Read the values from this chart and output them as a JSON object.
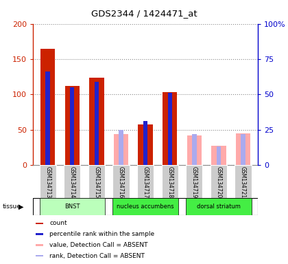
{
  "title": "GDS2344 / 1424471_at",
  "samples": [
    "GSM134713",
    "GSM134714",
    "GSM134715",
    "GSM134716",
    "GSM134717",
    "GSM134718",
    "GSM134719",
    "GSM134720",
    "GSM134721"
  ],
  "count_present": [
    165,
    112,
    124,
    null,
    57,
    103,
    null,
    null,
    null
  ],
  "count_absent": [
    null,
    null,
    null,
    44,
    null,
    null,
    42,
    27,
    45
  ],
  "rank_present": [
    66,
    55,
    59,
    null,
    31,
    51,
    null,
    null,
    null
  ],
  "rank_absent": [
    null,
    null,
    null,
    25,
    null,
    null,
    22,
    13,
    22
  ],
  "ylim_left": [
    0,
    200
  ],
  "ylim_right": [
    0,
    100
  ],
  "yticks_left": [
    0,
    50,
    100,
    150,
    200
  ],
  "yticks_right": [
    0,
    25,
    50,
    75,
    100
  ],
  "yticklabels_left": [
    "0",
    "50",
    "100",
    "150",
    "200"
  ],
  "yticklabels_right": [
    "0",
    "25",
    "50",
    "75",
    "100%"
  ],
  "color_count_present": "#cc2200",
  "color_rank_present": "#2222cc",
  "color_count_absent": "#ffaaaa",
  "color_rank_absent": "#aaaaee",
  "tissue_groups": [
    {
      "label": "BNST",
      "start": 0,
      "end": 2,
      "color": "#bbffbb"
    },
    {
      "label": "nucleus accumbens",
      "start": 3,
      "end": 5,
      "color": "#44ee44"
    },
    {
      "label": "dorsal striatum",
      "start": 6,
      "end": 8,
      "color": "#44ee44"
    }
  ],
  "legend_items": [
    {
      "color": "#cc2200",
      "label": "count"
    },
    {
      "color": "#2222cc",
      "label": "percentile rank within the sample"
    },
    {
      "color": "#ffaaaa",
      "label": "value, Detection Call = ABSENT"
    },
    {
      "color": "#aaaaee",
      "label": "rank, Detection Call = ABSENT"
    }
  ],
  "bar_width": 0.6,
  "rank_bar_width": 0.18,
  "left_axis_color": "#cc2200",
  "right_axis_color": "#0000cc",
  "background_color": "#ffffff",
  "grid_color": "#888888",
  "sample_box_color": "#cccccc"
}
